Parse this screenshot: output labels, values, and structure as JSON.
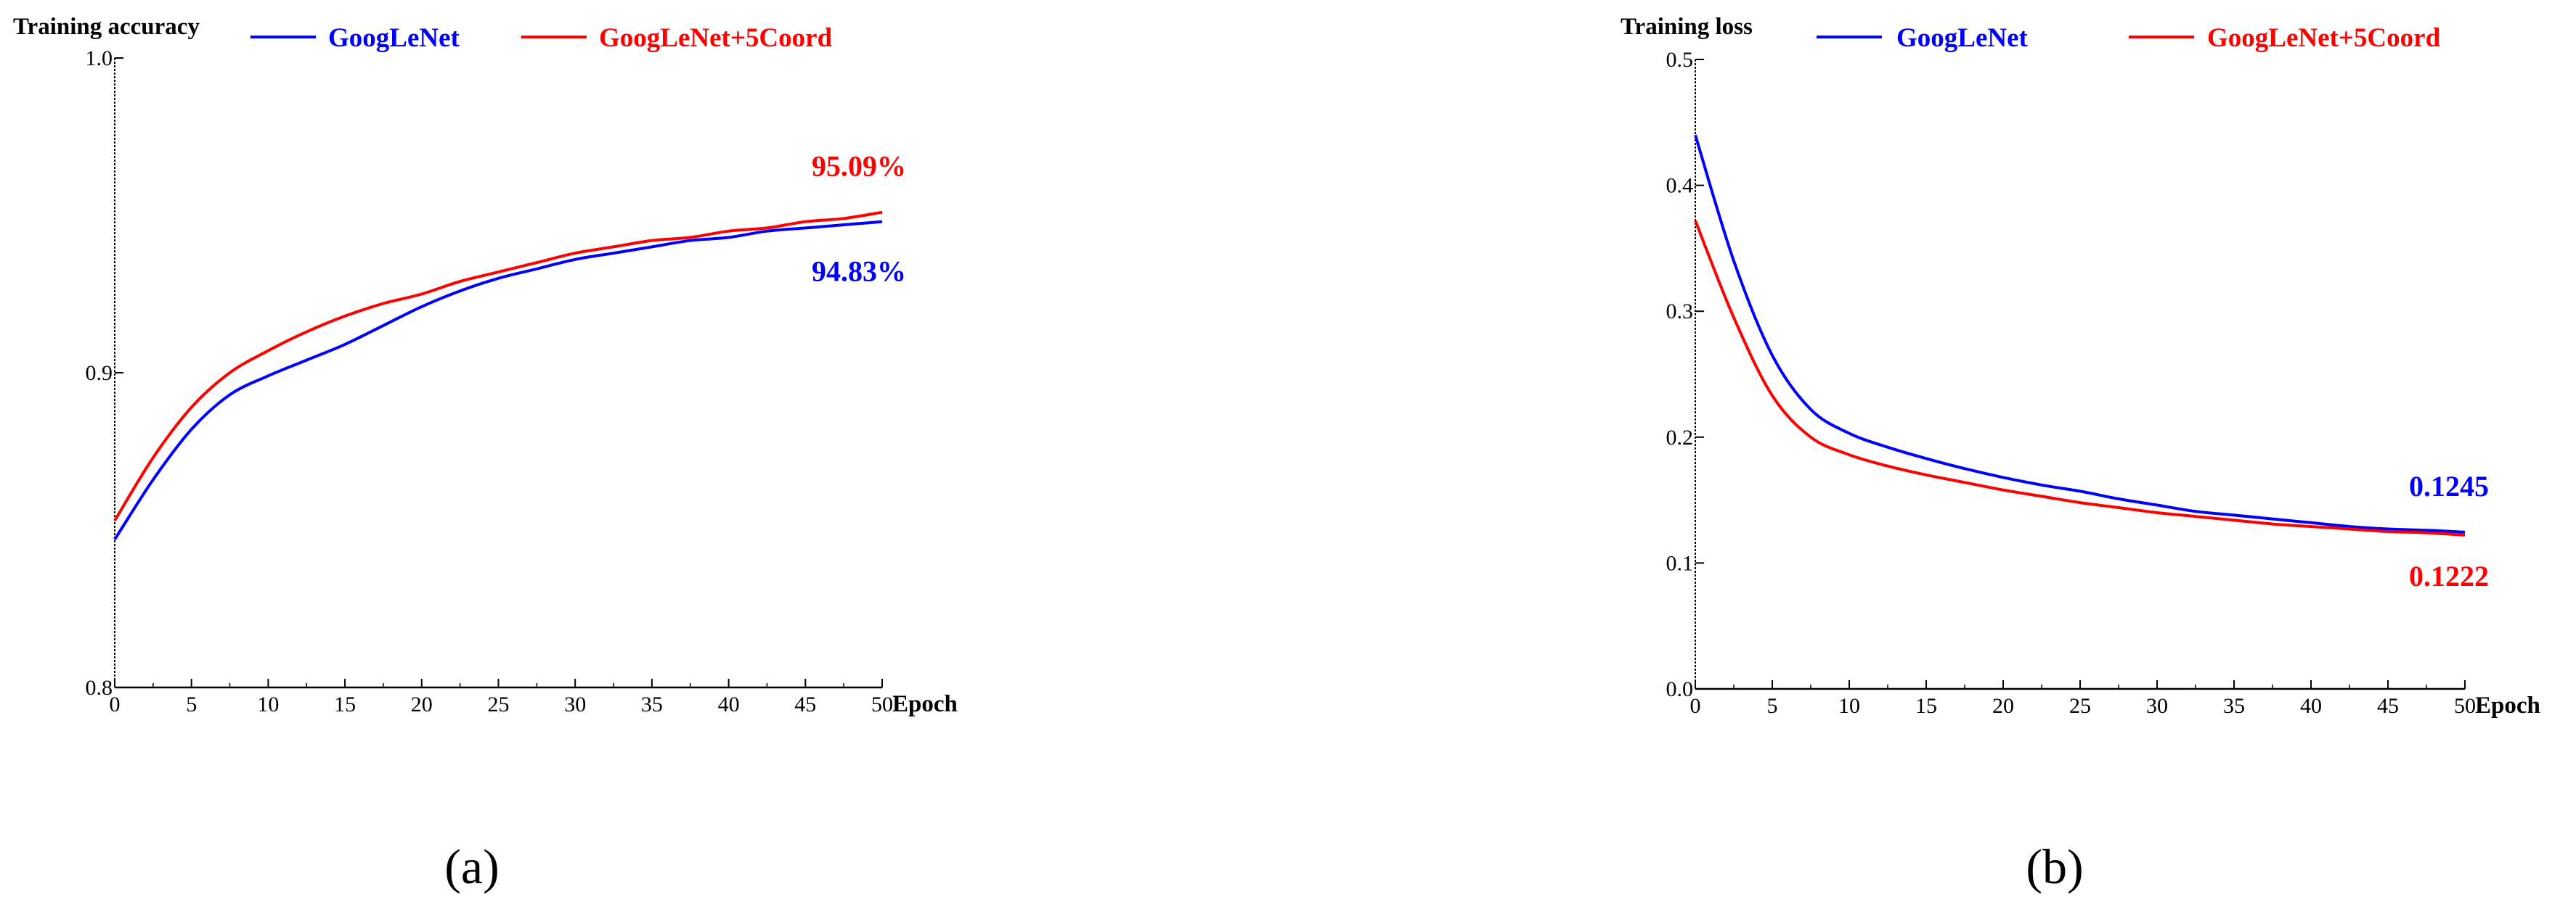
{
  "chart_data": [
    {
      "panel": "(a)",
      "type": "line",
      "ylabel": "Training accuracy",
      "xlabel": "Epoch",
      "xlim": [
        0,
        50
      ],
      "ylim": [
        0.8,
        1.0
      ],
      "xticks": [
        "0",
        "5",
        "10",
        "15",
        "20",
        "25",
        "30",
        "35",
        "40",
        "45",
        "50"
      ],
      "yticks": [
        "0.8",
        "0.9",
        "1.0"
      ],
      "legend_position": "top",
      "x": [
        0,
        2.5,
        5,
        7.5,
        10,
        12.5,
        15,
        17.5,
        20,
        22.5,
        25,
        27.5,
        30,
        32.5,
        35,
        37.5,
        40,
        42.5,
        45,
        47.5,
        50
      ],
      "series": [
        {
          "name": "GoogLeNet",
          "color": "#0000ff",
          "values": [
            0.847,
            0.866,
            0.882,
            0.893,
            0.899,
            0.904,
            0.909,
            0.915,
            0.921,
            0.926,
            0.93,
            0.933,
            0.936,
            0.938,
            0.94,
            0.942,
            0.943,
            0.945,
            0.946,
            0.947,
            0.948
          ],
          "end_label": "94.83%"
        },
        {
          "name": "GoogLeNet+5Coord",
          "color": "#ff0000",
          "values": [
            0.853,
            0.873,
            0.889,
            0.9,
            0.907,
            0.913,
            0.918,
            0.922,
            0.925,
            0.929,
            0.932,
            0.935,
            0.938,
            0.94,
            0.942,
            0.943,
            0.945,
            0.946,
            0.948,
            0.949,
            0.951
          ],
          "end_label": "95.09%"
        }
      ]
    },
    {
      "panel": "(b)",
      "type": "line",
      "ylabel": "Training loss",
      "xlabel": "Epoch",
      "xlim": [
        0,
        50
      ],
      "ylim": [
        0.0,
        0.5
      ],
      "xticks": [
        "0",
        "5",
        "10",
        "15",
        "20",
        "25",
        "30",
        "35",
        "40",
        "45",
        "50"
      ],
      "yticks": [
        "0.0",
        "0.1",
        "0.2",
        "0.3",
        "0.4",
        "0.5"
      ],
      "legend_position": "top",
      "x": [
        0,
        2.5,
        5,
        7.5,
        10,
        12.5,
        15,
        17.5,
        20,
        22.5,
        25,
        27.5,
        30,
        32.5,
        35,
        37.5,
        40,
        42.5,
        45,
        47.5,
        50
      ],
      "series": [
        {
          "name": "GoogLeNet",
          "color": "#0000ff",
          "values": [
            0.44,
            0.34,
            0.265,
            0.222,
            0.203,
            0.192,
            0.183,
            0.175,
            0.168,
            0.162,
            0.157,
            0.151,
            0.146,
            0.141,
            0.138,
            0.135,
            0.132,
            0.129,
            0.127,
            0.126,
            0.1245
          ],
          "end_label": "0.1245"
        },
        {
          "name": "GoogLeNet+5Coord",
          "color": "#ff0000",
          "values": [
            0.372,
            0.295,
            0.233,
            0.2,
            0.186,
            0.177,
            0.17,
            0.164,
            0.158,
            0.153,
            0.148,
            0.144,
            0.14,
            0.137,
            0.134,
            0.131,
            0.129,
            0.127,
            0.125,
            0.124,
            0.1222
          ],
          "end_label": "0.1222"
        }
      ]
    }
  ]
}
